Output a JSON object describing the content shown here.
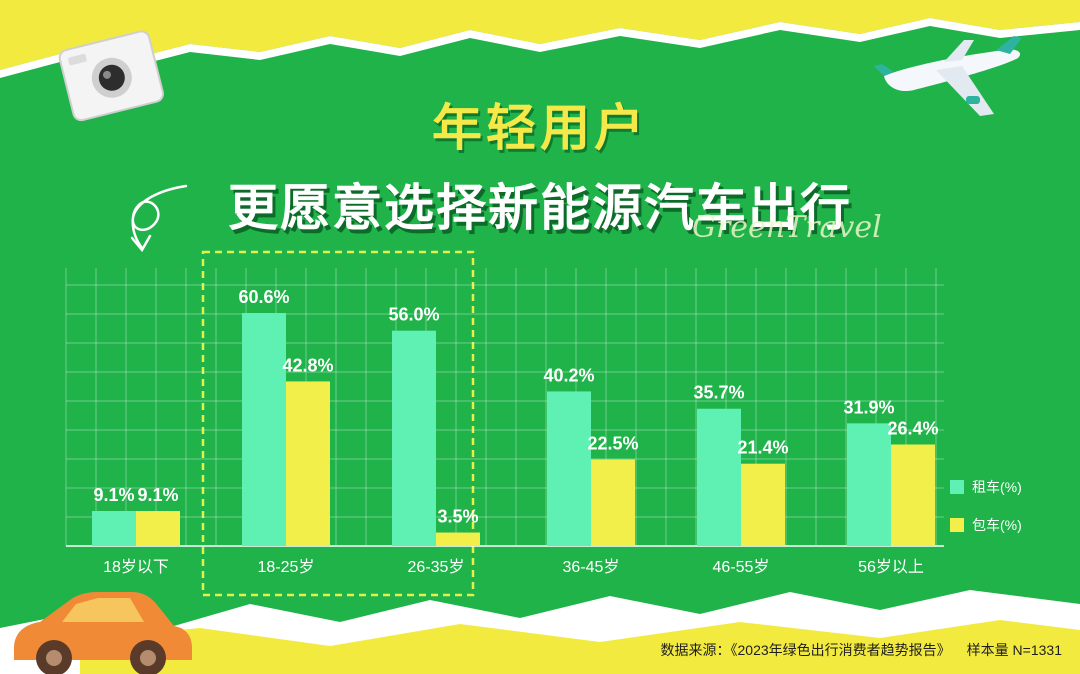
{
  "header": {
    "title_line1": "年轻用户",
    "title_line2": "更愿意选择新能源汽车出行",
    "script_text": "GreenTravel"
  },
  "footer": {
    "source": "数据来源：《2023年绿色出行消费者趋势报告》",
    "sample": "样本量 N=1331"
  },
  "colors": {
    "background": "#1fb34a",
    "rent": "#5ff0b4",
    "charter": "#f2ef4a",
    "highlight_box": "#e6f04a"
  },
  "chart_data": {
    "type": "bar",
    "categories": [
      "18岁以下",
      "18-25岁",
      "26-35岁",
      "36-45岁",
      "46-55岁",
      "56岁以上"
    ],
    "series": [
      {
        "name": "租车(%)",
        "values": [
          9.1,
          60.6,
          56.0,
          40.2,
          35.7,
          31.9
        ],
        "labels": [
          "9.1%",
          "60.6%",
          "56.0%",
          "40.2%",
          "35.7%",
          "31.9%"
        ]
      },
      {
        "name": "包车(%)",
        "values": [
          9.1,
          42.8,
          3.5,
          22.5,
          21.4,
          26.4
        ],
        "labels": [
          "9.1%",
          "42.8%",
          "3.5%",
          "22.5%",
          "21.4%",
          "26.4%"
        ]
      }
    ],
    "legend_position": "right",
    "highlighted_categories": [
      "18-25岁",
      "26-35岁"
    ],
    "grid": true
  }
}
